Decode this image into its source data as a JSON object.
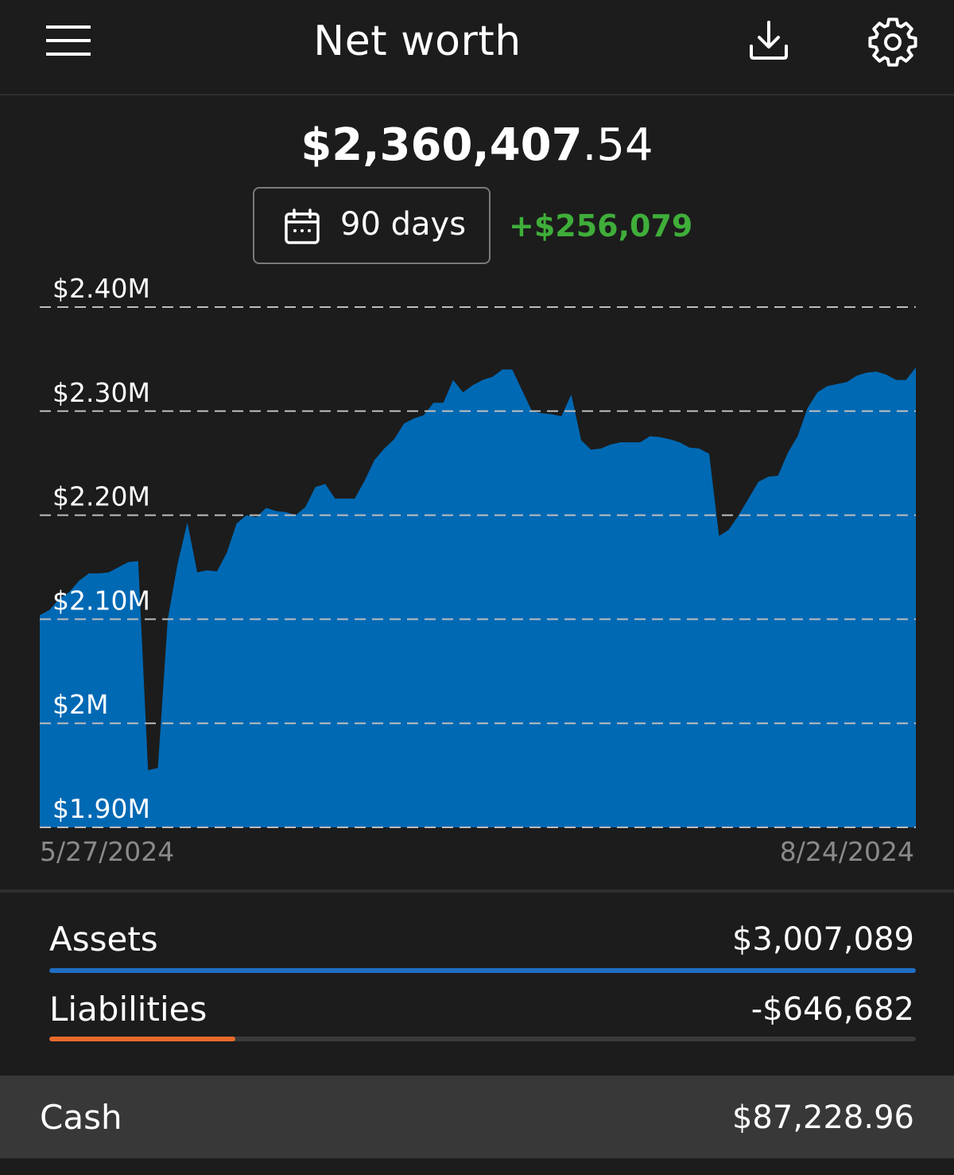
{
  "header": {
    "title": "Net worth",
    "icons": {
      "menu": "hamburger-menu-icon",
      "download": "download-icon",
      "settings": "gear-icon"
    }
  },
  "summary": {
    "total_dollars": "$2,360,407",
    "total_cents": ".54",
    "range_label": "90 days",
    "change": "+$256,079"
  },
  "colors": {
    "background": "#1c1c1c",
    "area_fill": "#0069b4",
    "positive": "#3fae3a",
    "assets_bar": "#1f6fc4",
    "liabilities_bar": "#e86a2b",
    "cash_row_bg": "#383838"
  },
  "chart_data": {
    "type": "area",
    "x_tick_labels": [
      "5/27/2024",
      "8/24/2024"
    ],
    "y_ticks": [
      {
        "value": 1900000,
        "label": "$1.90M"
      },
      {
        "value": 2000000,
        "label": "$2M"
      },
      {
        "value": 2100000,
        "label": "$2.10M"
      },
      {
        "value": 2200000,
        "label": "$2.20M"
      },
      {
        "value": 2300000,
        "label": "$2.30M"
      },
      {
        "value": 2400000,
        "label": "$2.40M"
      }
    ],
    "ylim": [
      1900000,
      2400000
    ],
    "grid": "dashed horizontal",
    "series": [
      {
        "day": [
          0,
          1,
          2,
          3,
          4,
          5,
          6,
          7,
          8,
          9,
          10,
          11,
          12,
          13,
          14,
          15,
          16,
          17,
          18,
          19,
          20,
          21,
          22,
          23,
          24,
          25,
          26,
          27,
          28,
          29,
          30,
          31,
          32,
          33,
          34,
          35,
          36,
          37,
          38,
          39,
          40,
          41,
          42,
          43,
          44,
          45,
          46,
          47,
          48,
          49,
          50,
          51,
          52,
          53,
          54,
          55,
          56,
          57,
          58,
          59,
          60,
          61,
          62,
          63,
          64,
          65,
          66,
          67,
          68,
          69,
          70,
          71,
          72,
          73,
          74,
          75,
          76,
          77,
          78,
          79,
          80,
          81,
          82,
          83,
          84,
          85,
          86,
          87,
          88,
          89
        ],
        "values": [
          2104000,
          2109000,
          2120000,
          2126000,
          2137000,
          2144000,
          2144000,
          2145000,
          2150000,
          2155000,
          2156000,
          1955000,
          1957000,
          2100000,
          2153000,
          2193000,
          2145000,
          2147000,
          2146000,
          2164000,
          2192000,
          2200000,
          2198000,
          2207000,
          2204000,
          2203000,
          2200000,
          2208000,
          2227000,
          2230000,
          2216000,
          2216000,
          2216000,
          2233000,
          2253000,
          2264000,
          2273000,
          2288000,
          2293000,
          2296000,
          2308000,
          2308000,
          2330000,
          2318000,
          2325000,
          2330000,
          2333000,
          2340000,
          2340000,
          2320000,
          2300000,
          2298000,
          2297000,
          2295000,
          2316000,
          2272000,
          2263000,
          2264000,
          2268000,
          2270000,
          2270000,
          2270000,
          2276000,
          2275000,
          2273000,
          2270000,
          2265000,
          2264000,
          2259000,
          2180000,
          2186000,
          2200000,
          2216000,
          2232000,
          2237000,
          2238000,
          2260000,
          2276000,
          2303000,
          2318000,
          2324000,
          2326000,
          2328000,
          2334000,
          2337000,
          2338000,
          2335000,
          2330000,
          2330000,
          2342000
        ]
      }
    ]
  },
  "breakdown": {
    "assets": {
      "label": "Assets",
      "value": "$3,007,089",
      "fill": 1.0
    },
    "liabilities": {
      "label": "Liabilities",
      "value": "-$646,682",
      "fill": 0.215
    }
  },
  "cash": {
    "label": "Cash",
    "value": "$87,228.96"
  }
}
